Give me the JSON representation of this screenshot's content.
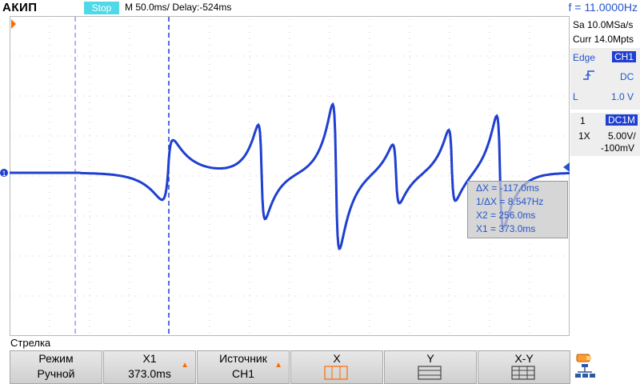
{
  "brand": "АКИП",
  "run_state": "Stop",
  "timebase": "M 50.0ms/ Delay:-524ms",
  "frequency": "f = 11.0000Hz",
  "acquisition": {
    "sample_rate": "Sa 10.0MSa/s",
    "memory": "Curr 14.0Mpts"
  },
  "trigger": {
    "type": "Edge",
    "source": "CH1",
    "coupling": "DC",
    "level_label": "L",
    "level_value": "1.0 V"
  },
  "channel": {
    "number": "1",
    "coupling": "DC1M",
    "probe": "1X",
    "scale": "5.00V/",
    "offset": "-100mV"
  },
  "channel_marker": "1",
  "cursor_readout": {
    "delta_x": "ΔX = -117.0ms",
    "inv_delta_x": "1/ΔX = 8.547Hz",
    "x2": "X2 = 256.0ms",
    "x1": "X1 = 373.0ms"
  },
  "menu_title": "Стрелка",
  "softkeys": {
    "mode_top": "Режим",
    "mode_bottom": "Ручной",
    "x1_top": "X1",
    "x1_bottom": "373.0ms",
    "source_top": "Источник",
    "source_bottom": "CH1",
    "x_label": "X",
    "y_label": "Y",
    "xy_label": "X-Y"
  },
  "arrow_glyph": "▲",
  "colors": {
    "trace": "#1f3fd0",
    "accent": "#2255cc",
    "stop_badge": "#4fd8e6",
    "arrow": "#ff6a00"
  }
}
